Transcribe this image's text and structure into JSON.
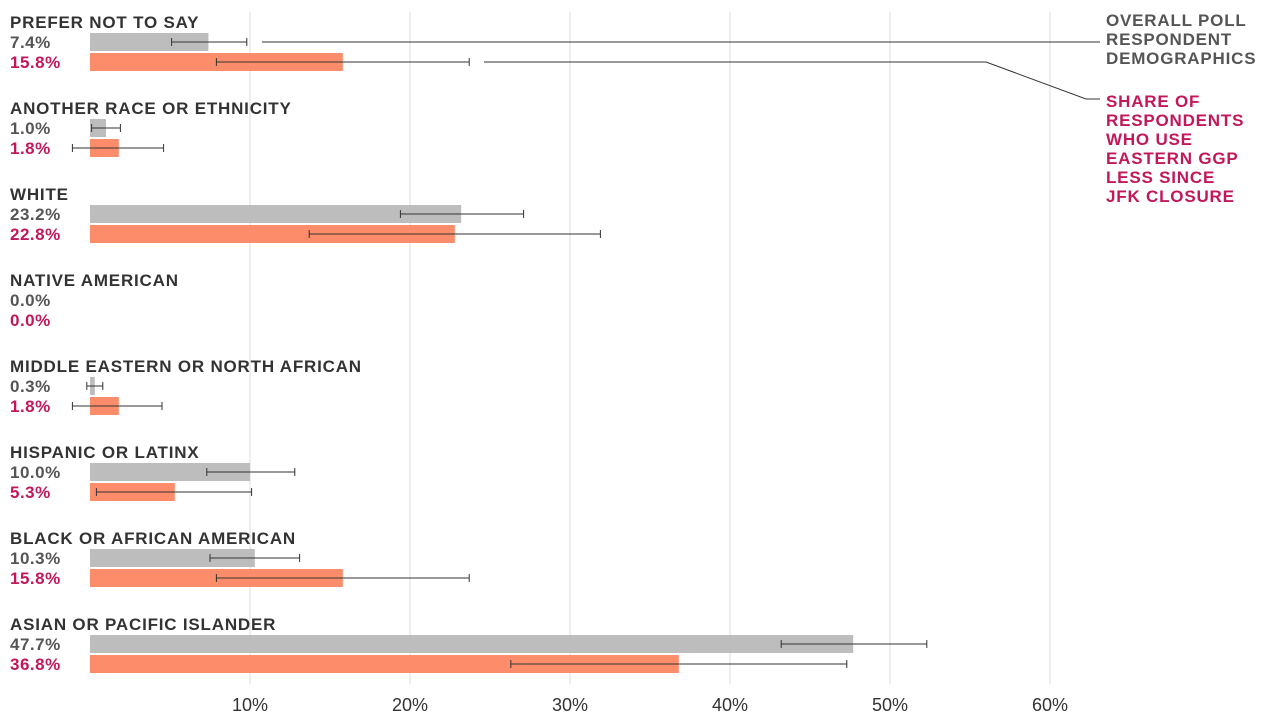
{
  "chart_data": {
    "type": "bar",
    "orientation": "horizontal",
    "xlim": [
      0,
      60
    ],
    "x_ticks": [
      10,
      20,
      30,
      40,
      50,
      60
    ],
    "x_tick_labels": [
      "10%",
      "20%",
      "30%",
      "40%",
      "50%",
      "60%"
    ],
    "grid": true,
    "series": [
      {
        "name": "OVERALL POLL RESPONDENT DEMOGRAPHICS",
        "color": "#bdbdbd"
      },
      {
        "name": "SHARE OF RESPONDENTS WHO USE EASTERN GGP LESS SINCE JFK CLOSURE",
        "color": "#fd8c6a"
      }
    ],
    "legend": {
      "position": "top-right",
      "overall_lines": [
        "OVERALL POLL",
        "RESPONDENT",
        "DEMOGRAPHICS"
      ],
      "share_lines": [
        "SHARE OF",
        "RESPONDENTS",
        "WHO USE",
        "EASTERN GGP",
        "LESS SINCE",
        "JFK CLOSURE"
      ]
    },
    "categories": [
      {
        "label": "PREFER NOT TO SAY",
        "overall": 7.4,
        "overall_label": "7.4%",
        "overall_err": [
          5.1,
          9.8
        ],
        "share": 15.8,
        "share_label": "15.8%",
        "share_err": [
          7.9,
          23.7
        ]
      },
      {
        "label": "ANOTHER RACE OR ETHNICITY",
        "overall": 1.0,
        "overall_label": "1.0%",
        "overall_err": [
          0.1,
          1.9
        ],
        "share": 1.8,
        "share_label": "1.8%",
        "share_err": [
          -1.1,
          4.6
        ]
      },
      {
        "label": "WHITE",
        "overall": 23.2,
        "overall_label": "23.2%",
        "overall_err": [
          19.4,
          27.1
        ],
        "share": 22.8,
        "share_label": "22.8%",
        "share_err": [
          13.7,
          31.9
        ]
      },
      {
        "label": "NATIVE AMERICAN",
        "overall": 0.0,
        "overall_label": "0.0%",
        "overall_err": null,
        "share": 0.0,
        "share_label": "0.0%",
        "share_err": null
      },
      {
        "label": "MIDDLE EASTERN OR NORTH AFRICAN",
        "overall": 0.3,
        "overall_label": "0.3%",
        "overall_err": [
          -0.2,
          0.8
        ],
        "share": 1.8,
        "share_label": "1.8%",
        "share_err": [
          -1.1,
          4.5
        ]
      },
      {
        "label": "HISPANIC OR LATINX",
        "overall": 10.0,
        "overall_label": "10.0%",
        "overall_err": [
          7.3,
          12.8
        ],
        "share": 5.3,
        "share_label": "5.3%",
        "share_err": [
          0.4,
          10.1
        ]
      },
      {
        "label": "BLACK OR AFRICAN AMERICAN",
        "overall": 10.3,
        "overall_label": "10.3%",
        "overall_err": [
          7.5,
          13.1
        ],
        "share": 15.8,
        "share_label": "15.8%",
        "share_err": [
          7.9,
          23.7
        ]
      },
      {
        "label": "ASIAN OR PACIFIC ISLANDER",
        "overall": 47.7,
        "overall_label": "47.7%",
        "overall_err": [
          43.2,
          52.3
        ],
        "share": 36.8,
        "share_label": "36.8%",
        "share_err": [
          26.3,
          47.3
        ]
      }
    ]
  }
}
